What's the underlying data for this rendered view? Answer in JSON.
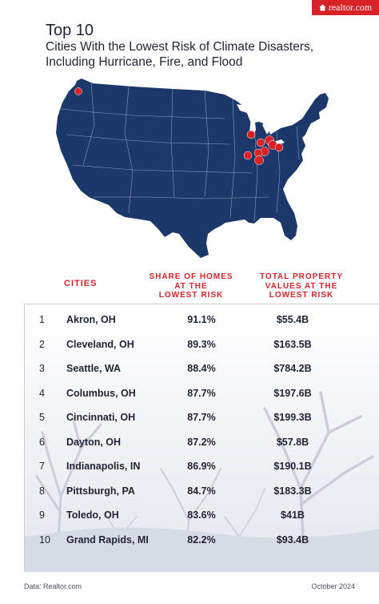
{
  "brand": {
    "name": "realtor.com",
    "color": "#d92228"
  },
  "title": "Top 10",
  "subtitle_line1": "Cities With the Lowest Risk of Climate Disasters,",
  "subtitle_line2": "Including Hurricane, Fire, and Flood",
  "map": {
    "region": "United States (contiguous)",
    "fill_color": "#1c3769",
    "marker_color": "#d92228",
    "markers": [
      "Akron, OH",
      "Cleveland, OH",
      "Seattle, WA",
      "Columbus, OH",
      "Cincinnati, OH",
      "Dayton, OH",
      "Indianapolis, IN",
      "Pittsburgh, PA",
      "Toledo, OH",
      "Grand Rapids, MI"
    ]
  },
  "columns": {
    "city": "CITIES",
    "share_line1": "SHARE OF HOMES",
    "share_line2": "AT THE",
    "share_line3": "LOWEST RISK",
    "total_line1": "TOTAL PROPERTY",
    "total_line2": "VALUES AT THE",
    "total_line3": "LOWEST RISK"
  },
  "rows": [
    {
      "rank": "1",
      "city": "Akron, OH",
      "share": "91.1%",
      "total": "$55.4B"
    },
    {
      "rank": "2",
      "city": "Cleveland, OH",
      "share": "89.3%",
      "total": "$163.5B"
    },
    {
      "rank": "3",
      "city": "Seattle, WA",
      "share": "88.4%",
      "total": "$784.2B"
    },
    {
      "rank": "4",
      "city": "Columbus, OH",
      "share": "87.7%",
      "total": "$197.6B"
    },
    {
      "rank": "5",
      "city": "Cincinnati, OH",
      "share": "87.7%",
      "total": "$199.3B"
    },
    {
      "rank": "6",
      "city": "Dayton, OH",
      "share": "87.2%",
      "total": "$57.8B"
    },
    {
      "rank": "7",
      "city": "Indianapolis, IN",
      "share": "86.9%",
      "total": "$190.1B"
    },
    {
      "rank": "8",
      "city": "Pittsburgh, PA",
      "share": "84.7%",
      "total": "$183.3B"
    },
    {
      "rank": "9",
      "city": "Toledo, OH",
      "share": "83.6%",
      "total": "$41B"
    },
    {
      "rank": "10",
      "city": "Grand Rapids, MI",
      "share": "82.2%",
      "total": "$93.4B"
    }
  ],
  "footer": {
    "source": "Data: Realtor.com",
    "date": "October 2024"
  }
}
